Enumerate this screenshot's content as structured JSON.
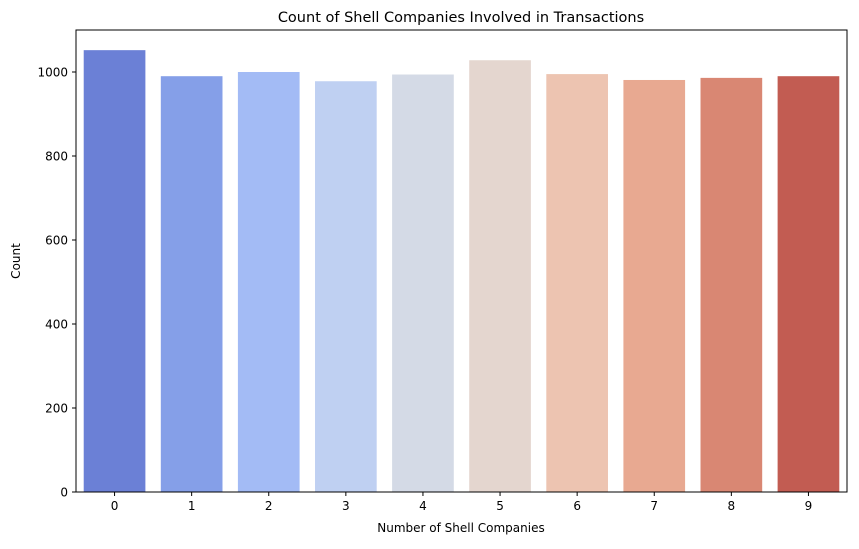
{
  "chart_data": {
    "type": "bar",
    "title": "Count of Shell Companies Involved in Transactions",
    "xlabel": "Number of Shell Companies",
    "ylabel": "Count",
    "categories": [
      "0",
      "1",
      "2",
      "3",
      "4",
      "5",
      "6",
      "7",
      "8",
      "9"
    ],
    "values": [
      1052,
      990,
      1000,
      978,
      994,
      1028,
      995,
      981,
      986,
      990
    ],
    "ylim": [
      0,
      1100
    ],
    "yticks": [
      0,
      200,
      400,
      600,
      800,
      1000
    ],
    "yticks_text": [
      "0",
      "200",
      "400",
      "600",
      "800",
      "1000"
    ],
    "grid": false,
    "legend": "none",
    "colors": [
      "#6b80d6",
      "#859fe8",
      "#a3bbf5",
      "#bfd0f2",
      "#d4dae6",
      "#e4d6cf",
      "#edc4b1",
      "#e8a991",
      "#d98773",
      "#c25c52"
    ]
  }
}
